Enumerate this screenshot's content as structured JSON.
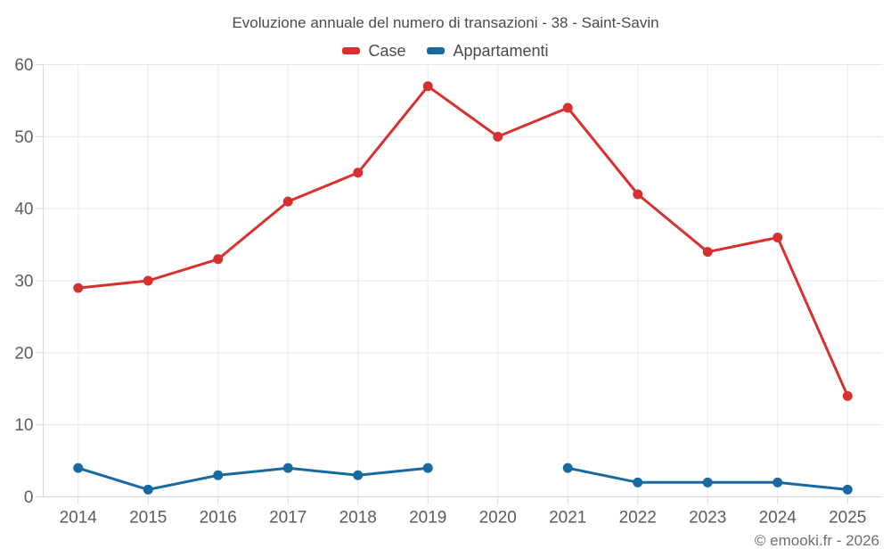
{
  "chart": {
    "copyright": "© emooki.fr - 2026"
  },
  "chart_data": {
    "type": "line",
    "title": "Evoluzione annuale del numero di transazioni - 38 - Saint-Savin",
    "categories": [
      "2014",
      "2015",
      "2016",
      "2017",
      "2018",
      "2019",
      "2020",
      "2021",
      "2022",
      "2023",
      "2024",
      "2025"
    ],
    "series": [
      {
        "name": "Case",
        "color": "#d7302f",
        "values": [
          29,
          30,
          33,
          41,
          45,
          57,
          50,
          54,
          42,
          34,
          36,
          14
        ]
      },
      {
        "name": "Appartamenti",
        "color": "#1769a0",
        "values": [
          4,
          1,
          3,
          4,
          3,
          4,
          null,
          4,
          2,
          2,
          2,
          1
        ]
      }
    ],
    "xlabel": "",
    "ylabel": "",
    "ylim": [
      0,
      60
    ],
    "yticks": [
      0,
      10,
      20,
      30,
      40,
      50,
      60
    ],
    "grid": true,
    "legend_position": "top-center"
  }
}
